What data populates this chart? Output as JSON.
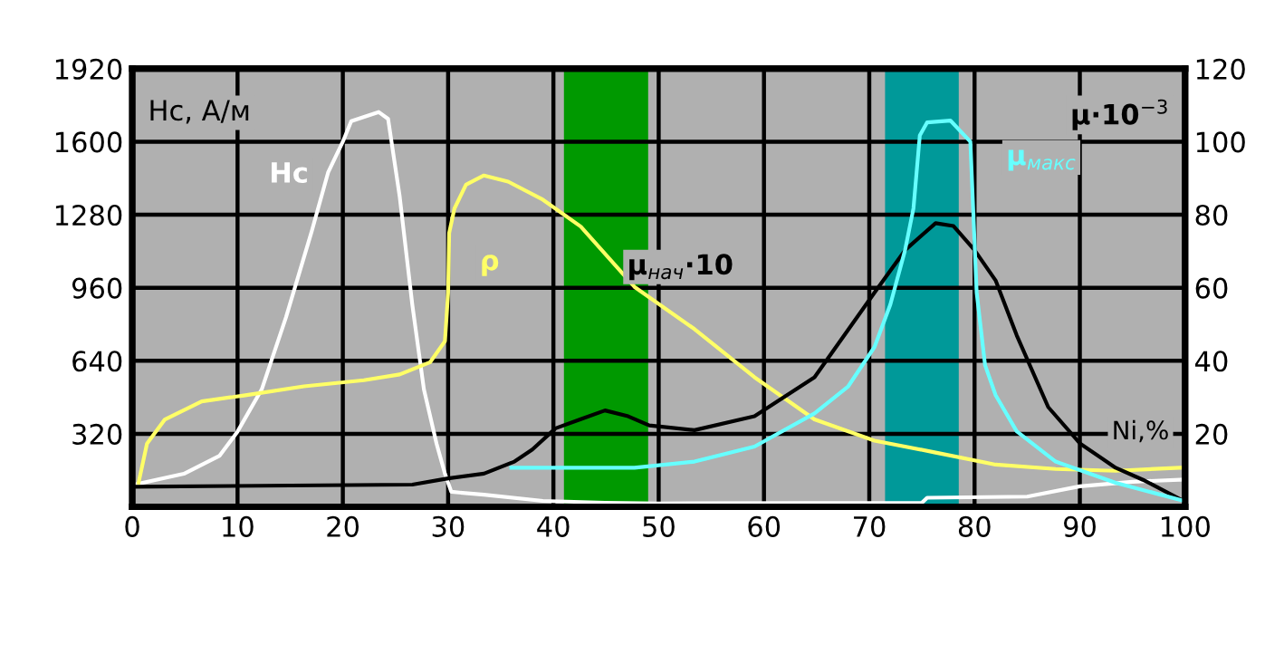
{
  "chart_data": {
    "type": "line",
    "ylabel": "Hc, А/м",
    "y2label": "μ·10$^{−3}$",
    "xlabel": "Ni,%",
    "xlim": [
      0,
      100
    ],
    "xticks": [
      0,
      10,
      20,
      30,
      40,
      50,
      60,
      70,
      80,
      90,
      100
    ],
    "ylim": [
      0,
      1920
    ],
    "yticks": [
      320,
      640,
      960,
      1280,
      1600,
      1920
    ],
    "y2lim": [
      0,
      120
    ],
    "y2ticks": [
      20,
      40,
      60,
      80,
      100,
      120
    ],
    "grid": true,
    "legend": false,
    "bands": [
      {
        "axis": "x",
        "from": 41,
        "to": 49,
        "color": "#009900"
      },
      {
        "axis": "x",
        "from": 71.5,
        "to": 78.5,
        "color": "#009999"
      }
    ],
    "series": [
      {
        "name": "Hc",
        "color": "#ffffff",
        "x": [
          0.3,
          4.9,
          8.3,
          10,
          12.3,
          14.6,
          17,
          18.6,
          20,
          20.8,
          23.4,
          24.3,
          25.4,
          26.6,
          27.7,
          28.9,
          29.7,
          30.3,
          33.4,
          39,
          44.9,
          50,
          75,
          75.5,
          85,
          90,
          95,
          100
        ],
        "values": [
          98,
          145,
          224,
          330,
          515,
          830,
          1200,
          1465,
          1600,
          1690,
          1730,
          1700,
          1360,
          885,
          515,
          277,
          145,
          66,
          53,
          26,
          18,
          15,
          18,
          40,
          45,
          90,
          110,
          120
        ]
      },
      {
        "name": "ρ",
        "color": "#ffff66",
        "x": [
          0.6,
          1.4,
          3.1,
          6.6,
          10.6,
          16.3,
          22,
          25.4,
          28.3,
          29.7,
          30,
          30.1,
          30.6,
          31.7,
          33.4,
          35.7,
          39,
          42.6,
          47.7,
          53.4,
          59.1,
          64.8,
          70.5,
          76.3,
          82,
          87.7,
          93.4,
          99.8
        ],
        "values": [
          106,
          277,
          383,
          462,
          488,
          528,
          555,
          580,
          634,
          726,
          937,
          1200,
          1307,
          1412,
          1452,
          1425,
          1346,
          1228,
          964,
          779,
          568,
          383,
          290,
          238,
          185,
          166,
          158,
          172
        ]
      },
      {
        "name": "μ$_{нач}$·10",
        "color": "#000000",
        "axis": "y2",
        "x": [
          0,
          26.6,
          30,
          33.4,
          36.3,
          38,
          40.2,
          42.6,
          44.9,
          47.1,
          49.1,
          53.4,
          59.1,
          64.8,
          70.5,
          73.4,
          76.3,
          78,
          80,
          82,
          84,
          87,
          90,
          93.4,
          96,
          99.8
        ],
        "values": [
          5.5,
          6.1,
          7.8,
          9.1,
          12.4,
          15.7,
          21.5,
          24,
          26.4,
          24.8,
          22.3,
          21,
          24.8,
          35.5,
          58.7,
          70.3,
          77.7,
          76.9,
          70.3,
          62,
          47,
          27.3,
          17.4,
          10.7,
          7.4,
          1.7
        ]
      },
      {
        "name": "μ$_{макс}$",
        "color": "#66ffff",
        "axis": "y2",
        "x": [
          36,
          47.7,
          53.4,
          59.1,
          64.8,
          68,
          70.5,
          72,
          73.4,
          74.2,
          74.8,
          75.5,
          77.7,
          79.6,
          80.2,
          81,
          82,
          84,
          87.7,
          93.4,
          99.8
        ],
        "values": [
          10.7,
          10.7,
          12.4,
          16.5,
          25.6,
          33,
          43.8,
          55.4,
          70.3,
          81.8,
          101.7,
          105.3,
          105.8,
          100,
          58.7,
          38.8,
          30.6,
          20.7,
          12.4,
          6.6,
          1.7
        ]
      }
    ]
  }
}
